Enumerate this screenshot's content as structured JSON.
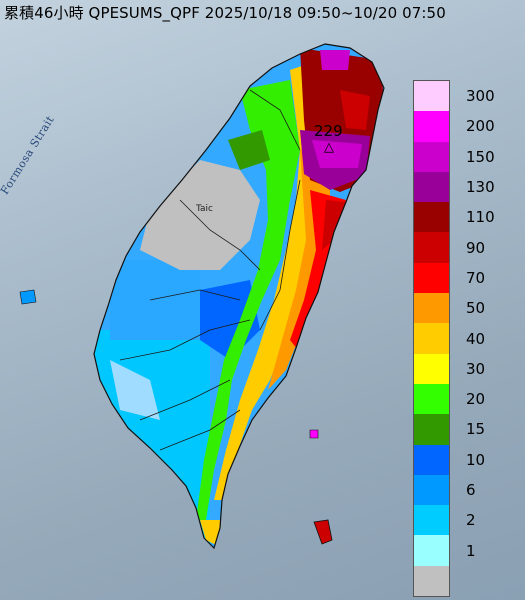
{
  "title": "累積46小時 QPESUMS_QPF 2025/10/18 09:50~10/20 07:50",
  "sea_label": "Formosa Strait",
  "city_label": "Taic",
  "peak_value": "229",
  "peak_marker": "△",
  "legend": [
    {
      "label": "300",
      "color": "#ffccff"
    },
    {
      "label": "200",
      "color": "#ff00ff"
    },
    {
      "label": "150",
      "color": "#cc00cc"
    },
    {
      "label": "130",
      "color": "#990099"
    },
    {
      "label": "110",
      "color": "#990000"
    },
    {
      "label": "90",
      "color": "#cc0000"
    },
    {
      "label": "70",
      "color": "#ff0000"
    },
    {
      "label": "50",
      "color": "#ff9900"
    },
    {
      "label": "40",
      "color": "#ffcc00"
    },
    {
      "label": "30",
      "color": "#ffff00"
    },
    {
      "label": "20",
      "color": "#33ff00"
    },
    {
      "label": "15",
      "color": "#339900"
    },
    {
      "label": "10",
      "color": "#0066ff"
    },
    {
      "label": "6",
      "color": "#0099ff"
    },
    {
      "label": "2",
      "color": "#00ccff"
    },
    {
      "label": "1",
      "color": "#99ffff"
    },
    {
      "label": "",
      "color": "#c0c0c0"
    }
  ]
}
